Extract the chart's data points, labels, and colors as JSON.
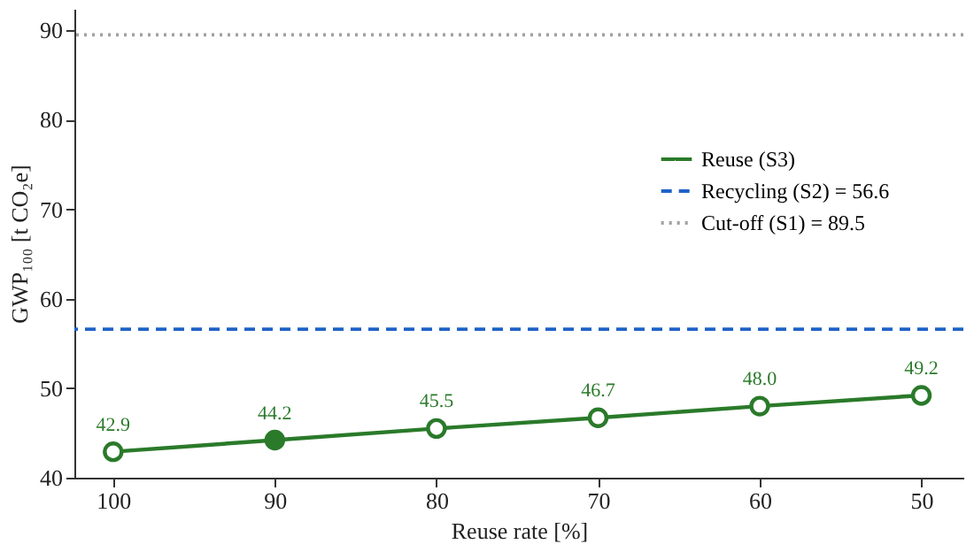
{
  "chart_data": {
    "type": "line",
    "xlabel": "Reuse rate [%]",
    "ylabel": "GWP₁₀₀ [t CO₂e]",
    "x": [
      100,
      90,
      80,
      70,
      60,
      50
    ],
    "series": [
      {
        "name": "Reuse (S3)",
        "color": "#2a7a2a",
        "line_style": "solid",
        "values": [
          42.9,
          44.2,
          45.5,
          46.7,
          48.0,
          49.2
        ],
        "value_labels": [
          "42.9",
          "44.2",
          "45.5",
          "46.7",
          "48.0",
          "49.2"
        ]
      },
      {
        "type": "scatter",
        "color": "#2a7a2a",
        "x": [
          90
        ],
        "values": [
          44.2
        ]
      }
    ],
    "ref_lines": [
      {
        "axis": "y",
        "value": 56.6,
        "label": "Recycling (S2) = 56.6",
        "color": "#1f62c8",
        "line_style": "dashed"
      },
      {
        "axis": "y",
        "value": 89.5,
        "label": "Cut-off (S1) = 89.5",
        "color": "#a0a0a0",
        "line_style": "dotted"
      }
    ],
    "xlim": [
      102.4,
      47.4
    ],
    "xticks": [
      100,
      90,
      80,
      70,
      60,
      50
    ],
    "ylim": [
      40,
      92.4
    ],
    "yticks": [
      40,
      50,
      60,
      70,
      80,
      90
    ],
    "marker": "circle",
    "grid": false,
    "legend": "right"
  }
}
